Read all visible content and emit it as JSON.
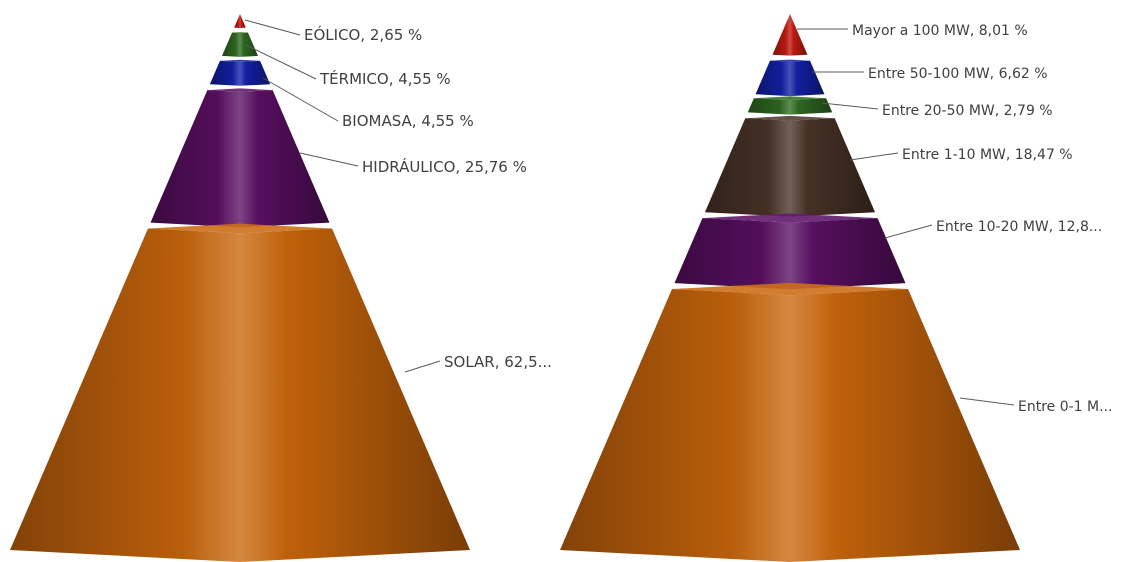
{
  "colors": {
    "red": "#c41a12",
    "green": "#2e6b22",
    "blue": "#1421a8",
    "purple": "#5a0f63",
    "brown": "#4a3428",
    "orange": "#c9660c"
  },
  "chart_data": [
    {
      "type": "pyramid",
      "title": "",
      "slices": [
        {
          "name": "EÓLICO",
          "value": 2.65,
          "label": "EÓLICO, 2,65 %",
          "color": "red"
        },
        {
          "name": "TÉRMICO",
          "value": 4.55,
          "label": "TÉRMICO, 4,55 %",
          "color": "green"
        },
        {
          "name": "BIOMASA",
          "value": 4.55,
          "label": "BIOMASA, 4,55 %",
          "color": "blue"
        },
        {
          "name": "HIDRÁULICO",
          "value": 25.76,
          "label": "HIDRÁULICO, 25,76 %",
          "color": "purple"
        },
        {
          "name": "SOLAR",
          "value": 62.5,
          "label": "SOLAR, 62,5...",
          "color": "orange"
        }
      ]
    },
    {
      "type": "pyramid",
      "title": "",
      "slices": [
        {
          "name": "Mayor a 100 MW",
          "value": 8.01,
          "label": "Mayor a 100 MW, 8,01 %",
          "color": "red"
        },
        {
          "name": "Entre 50-100 MW",
          "value": 6.62,
          "label": "Entre 50-100 MW, 6,62 %",
          "color": "blue"
        },
        {
          "name": "Entre 20-50 MW",
          "value": 2.79,
          "label": "Entre 20-50 MW, 2,79 %",
          "color": "green"
        },
        {
          "name": "Entre 1-10 MW",
          "value": 18.47,
          "label": "Entre 1-10 MW, 18,47 %",
          "color": "brown"
        },
        {
          "name": "Entre 10-20 MW",
          "value": 12.8,
          "label": "Entre 10-20 MW, 12,8...",
          "color": "purple"
        },
        {
          "name": "Entre 0-1 MW",
          "value": 51.3,
          "label": "Entre 0-1 M...",
          "color": "orange"
        }
      ]
    }
  ]
}
